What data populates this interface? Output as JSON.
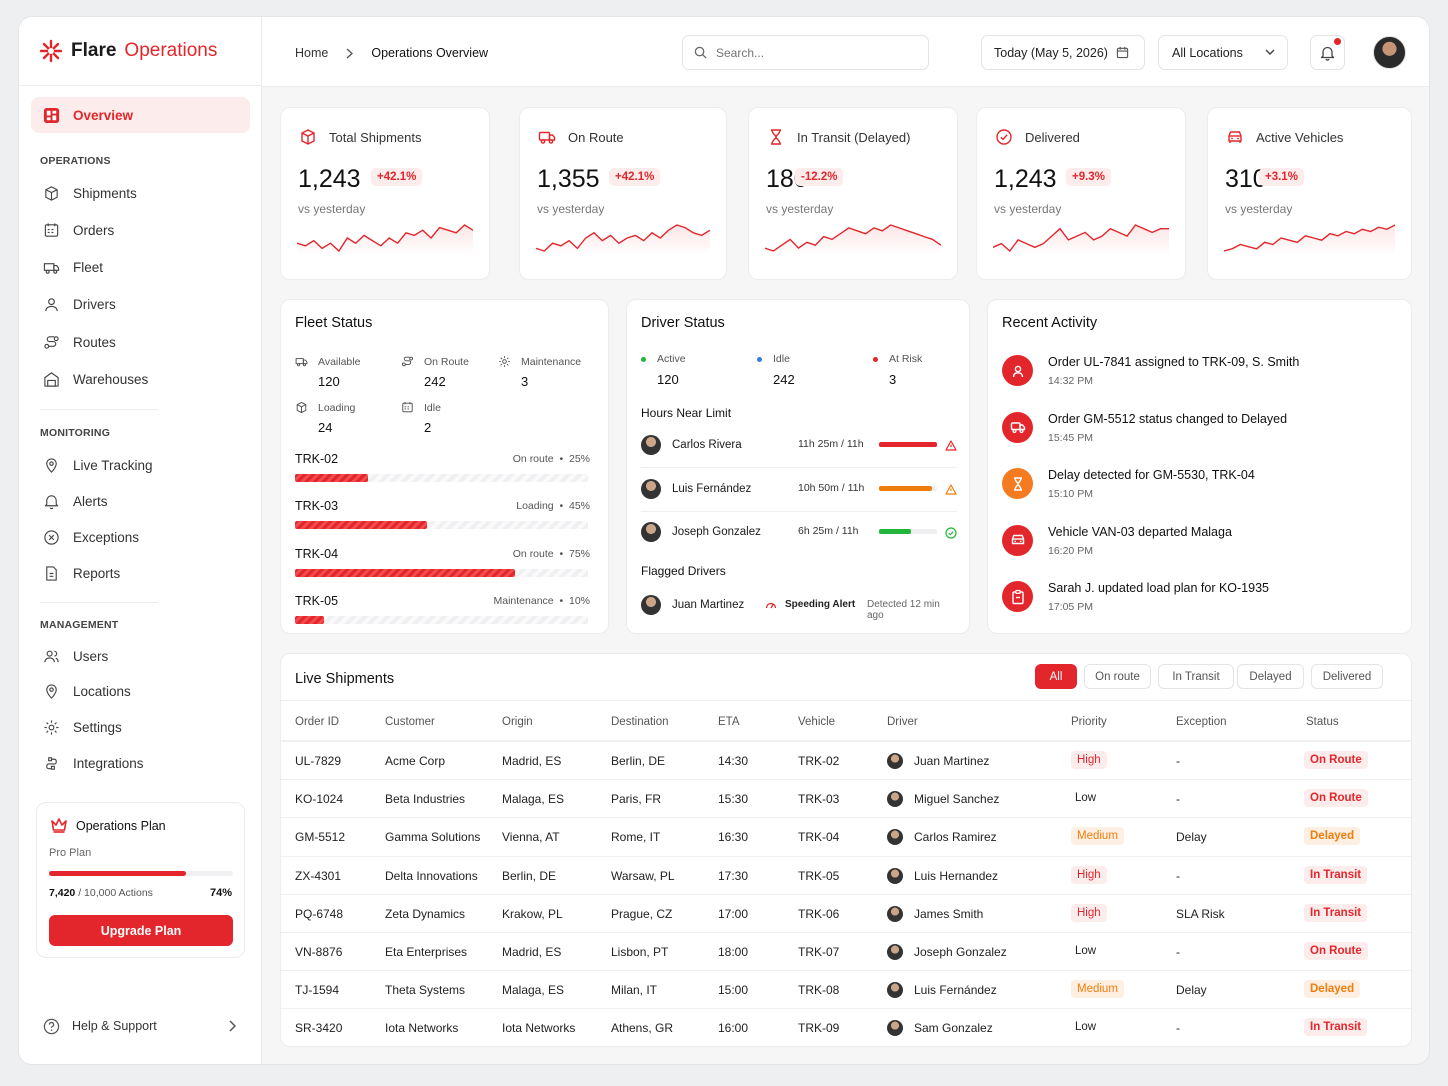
{
  "brand": {
    "name": "Flare",
    "product": "Operations"
  },
  "nav": {
    "overview": "Overview",
    "operations_header": "OPERATIONS",
    "operations": [
      "Shipments",
      "Orders",
      "Fleet",
      "Drivers",
      "Routes",
      "Warehouses"
    ],
    "monitoring_header": "MONITORING",
    "monitoring": [
      "Live Tracking",
      "Alerts",
      "Exceptions",
      "Reports"
    ],
    "management_header": "MANAGEMENT",
    "management": [
      "Users",
      "Locations",
      "Settings",
      "Integrations"
    ],
    "help": "Help & Support"
  },
  "plan": {
    "title": "Operations Plan",
    "tier": "Pro Plan",
    "used": "7,420",
    "limit": "/ 10,000 Actions",
    "percent": "74%",
    "progress": 0.742,
    "button": "Upgrade Plan"
  },
  "header": {
    "breadcrumb_home": "Home",
    "breadcrumb_current": "Operations Overview",
    "search_placeholder": "Search...",
    "date": "Today (May 5, 2026)",
    "location": "All Locations"
  },
  "kpis": [
    {
      "label": "Total Shipments",
      "value": "1,243",
      "change": "+42.1%",
      "sub": "vs yesterday",
      "icon": "box-icon"
    },
    {
      "label": "On Route",
      "value": "1,355",
      "change": "+42.1%",
      "sub": "vs yesterday",
      "icon": "truck-icon"
    },
    {
      "label": "In Transit (Delayed)",
      "value": "180",
      "change": "-12.2%",
      "sub": "vs yesterday",
      "icon": "hourglass-icon"
    },
    {
      "label": "Delivered",
      "value": "1,243",
      "change": "+9.3%",
      "sub": "vs yesterday",
      "icon": "check-circle-icon"
    },
    {
      "label": "Active Vehicles",
      "value": "310",
      "change": "+3.1%",
      "sub": "vs yesterday",
      "icon": "car-icon"
    }
  ],
  "fleet": {
    "title": "Fleet Status",
    "stats": [
      {
        "label": "Available",
        "value": "120"
      },
      {
        "label": "On Route",
        "value": "242"
      },
      {
        "label": "Maintenance",
        "value": "3"
      },
      {
        "label": "Loading",
        "value": "24"
      },
      {
        "label": "Idle",
        "value": "2"
      }
    ],
    "vehicles": [
      {
        "id": "TRK-02",
        "status": "On route",
        "pct": "25%",
        "fill": 0.25
      },
      {
        "id": "TRK-03",
        "status": "Loading",
        "pct": "45%",
        "fill": 0.45
      },
      {
        "id": "TRK-04",
        "status": "On route",
        "pct": "75%",
        "fill": 0.75
      },
      {
        "id": "TRK-05",
        "status": "Maintenance",
        "pct": "10%",
        "fill": 0.1
      }
    ]
  },
  "drivers": {
    "title": "Driver Status",
    "stats": [
      {
        "label": "Active",
        "value": "120",
        "color": "#22b53c"
      },
      {
        "label": "Idle",
        "value": "242",
        "color": "#2f7de1"
      },
      {
        "label": "At Risk",
        "value": "3",
        "color": "#e3262b"
      }
    ],
    "hours_title": "Hours Near Limit",
    "hours": [
      {
        "name": "Carlos Rivera",
        "hours": "11h 25m / 11h",
        "fill": 1.0,
        "color": "#e3262b",
        "flag": "warning-icon"
      },
      {
        "name": "Luis Fernández",
        "hours": "10h 50m / 11h",
        "fill": 0.92,
        "color": "#ef7d0c",
        "flag": "warning-icon"
      },
      {
        "name": "Joseph Gonzalez",
        "hours": "6h 25m / 11h",
        "fill": 0.55,
        "color": "#22b53c",
        "flag": "check-icon"
      }
    ],
    "flagged_title": "Flagged Drivers",
    "flagged": {
      "name": "Juan Martinez",
      "alert": "Speeding Alert",
      "time": "Detected 12 min ago"
    }
  },
  "activity": {
    "title": "Recent Activity",
    "items": [
      {
        "text": "Order UL-7841 assigned to TRK-09, S. Smith",
        "time": "14:32 PM",
        "color": "#e3262b",
        "icon": "user-icon"
      },
      {
        "text": "Order GM-5512 status changed to Delayed",
        "time": "15:45 PM",
        "color": "#e3262b",
        "icon": "truck-icon"
      },
      {
        "text": "Delay detected for GM-5530, TRK-04",
        "time": "15:10 PM",
        "color": "#f47b20",
        "icon": "hourglass-icon"
      },
      {
        "text": "Vehicle VAN-03 departed Malaga",
        "time": "16:20 PM",
        "color": "#e3262b",
        "icon": "car-icon"
      },
      {
        "text": "Sarah J. updated load plan for KO-1935",
        "time": "17:05 PM",
        "color": "#e3262b",
        "icon": "clipboard-icon"
      }
    ]
  },
  "shipments": {
    "title": "Live Shipments",
    "filters": [
      "All",
      "On route",
      "In Transit",
      "Delayed",
      "Delivered"
    ],
    "columns": [
      "Order ID",
      "Customer",
      "Origin",
      "Destination",
      "ETA",
      "Vehicle",
      "Driver",
      "Priority",
      "Exception",
      "Status"
    ],
    "rows": [
      {
        "id": "UL-7829",
        "customer": "Acme Corp",
        "origin": "Madrid, ES",
        "dest": "Berlin, DE",
        "eta": "14:30",
        "vehicle": "TRK-02",
        "driver": "Juan Martinez",
        "priority": "High",
        "exception": "-",
        "status": "On Route"
      },
      {
        "id": "KO-1024",
        "customer": "Beta Industries",
        "origin": "Malaga, ES",
        "dest": "Paris, FR",
        "eta": "15:30",
        "vehicle": "TRK-03",
        "driver": "Miguel Sanchez",
        "priority": "Low",
        "exception": "-",
        "status": "On Route"
      },
      {
        "id": "GM-5512",
        "customer": "Gamma Solutions",
        "origin": "Vienna, AT",
        "dest": "Rome, IT",
        "eta": "16:30",
        "vehicle": "TRK-04",
        "driver": "Carlos Ramirez",
        "priority": "Medium",
        "exception": "Delay",
        "status": "Delayed"
      },
      {
        "id": "ZX-4301",
        "customer": "Delta Innovations",
        "origin": "Berlin, DE",
        "dest": "Warsaw, PL",
        "eta": "17:30",
        "vehicle": "TRK-05",
        "driver": "Luis Hernandez",
        "priority": "High",
        "exception": "-",
        "status": "In Transit"
      },
      {
        "id": "PQ-6748",
        "customer": "Zeta Dynamics",
        "origin": "Krakow, PL",
        "dest": "Prague, CZ",
        "eta": "17:00",
        "vehicle": "TRK-06",
        "driver": "James Smith",
        "priority": "High",
        "exception": "SLA Risk",
        "status": "In Transit"
      },
      {
        "id": "VN-8876",
        "customer": "Eta Enterprises",
        "origin": "Madrid, ES",
        "dest": "Lisbon, PT",
        "eta": "18:00",
        "vehicle": "TRK-07",
        "driver": "Joseph Gonzalez",
        "priority": "Low",
        "exception": "-",
        "status": "On Route"
      },
      {
        "id": "TJ-1594",
        "customer": "Theta Systems",
        "origin": "Malaga, ES",
        "dest": "Milan, IT",
        "eta": "15:00",
        "vehicle": "TRK-08",
        "driver": "Luis Fernández",
        "priority": "Medium",
        "exception": "Delay",
        "status": "Delayed"
      },
      {
        "id": "SR-3420",
        "customer": "Iota Networks",
        "origin": "Iota Networks",
        "dest": "Athens, GR",
        "eta": "16:00",
        "vehicle": "TRK-09",
        "driver": "Sam Gonzalez",
        "priority": "Low",
        "exception": "-",
        "status": "In Transit"
      }
    ]
  },
  "colors": {
    "accent": "#e3262b",
    "orange": "#ef7d0c"
  }
}
